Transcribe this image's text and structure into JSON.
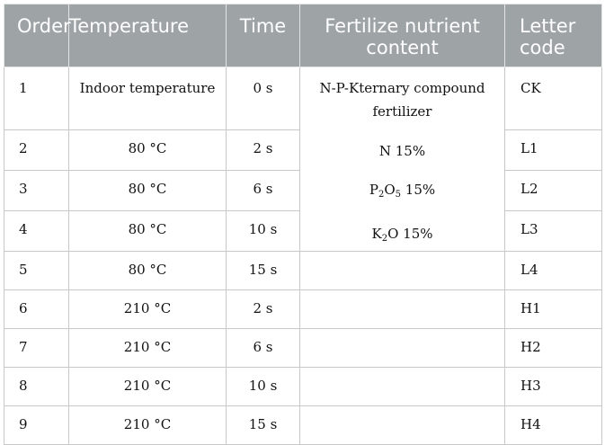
{
  "headers": [
    "Order",
    "Temperature",
    "Time",
    "Fertilize nutrient content",
    "Letter code"
  ],
  "rows": [
    {
      "order": "1",
      "temperature": "Indoor temperature",
      "time": "0 s",
      "code": "CK"
    },
    {
      "order": "2",
      "temperature": "80 °C",
      "time": "2 s",
      "code": "L1"
    },
    {
      "order": "3",
      "temperature": "80 °C",
      "time": "6 s",
      "code": "L2"
    },
    {
      "order": "4",
      "temperature": "80 °C",
      "time": "10 s",
      "code": "L3"
    },
    {
      "order": "5",
      "temperature": "80 °C",
      "time": "15 s",
      "code": "L4"
    },
    {
      "order": "6",
      "temperature": "210 °C",
      "time": "2 s",
      "code": "H1"
    },
    {
      "order": "7",
      "temperature": "210 °C",
      "time": "6 s",
      "code": "H2"
    },
    {
      "order": "8",
      "temperature": "210 °C",
      "time": "10 s",
      "code": "H3"
    },
    {
      "order": "9",
      "temperature": "210 °C",
      "time": "15 s",
      "code": "H4"
    }
  ],
  "fertilizer": {
    "name": "N-P-Kternary compound fertilizer",
    "n": "N 15%",
    "p_base": "P",
    "p_sub1": "2",
    "p_mid": "O",
    "p_sub2": "5",
    "p_val": " 15%",
    "k_base": "K",
    "k_sub": "2",
    "k_val": "O 15%"
  }
}
